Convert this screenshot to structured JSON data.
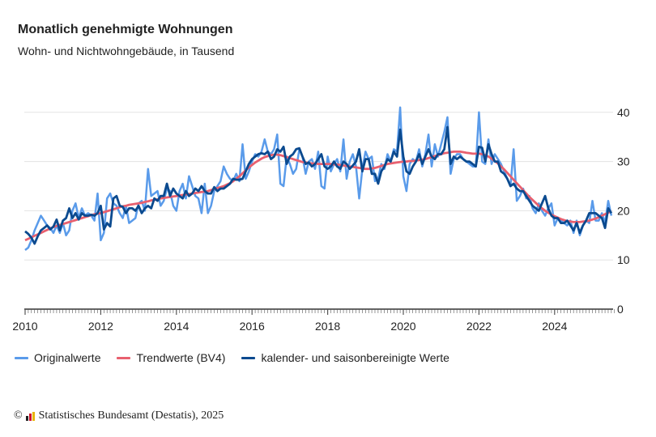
{
  "title": "Monatlich genehmigte Wohnungen",
  "subtitle": "Wohn- und Nichtwohngebäude, in Tausend",
  "footer": {
    "copyright": "©",
    "text": "Statistisches Bundesamt (Destatis), 2025",
    "logo_text": "Destatis"
  },
  "chart_data": {
    "type": "line",
    "x_start": "2010-01",
    "frequency": "monthly",
    "x_ticks": [
      "2010",
      "2012",
      "2014",
      "2016",
      "2018",
      "2020",
      "2022",
      "2024"
    ],
    "y_ticks": [
      "0",
      "10",
      "20",
      "30",
      "40"
    ],
    "ylim": [
      0,
      40
    ],
    "y_axis_side": "right",
    "grid": true,
    "legend_position": "bottom",
    "series": [
      {
        "name": "Originalwerte",
        "color": "#5a9bea",
        "values": [
          12.0,
          12.5,
          14.0,
          16.0,
          17.5,
          19.0,
          18.0,
          17.0,
          16.5,
          15.5,
          17.0,
          15.5,
          17.5,
          15.0,
          16.0,
          20.0,
          21.5,
          18.5,
          20.5,
          19.0,
          19.5,
          19.0,
          18.0,
          23.5,
          14.0,
          15.5,
          22.5,
          23.5,
          21.5,
          21.0,
          19.5,
          18.5,
          21.0,
          17.5,
          18.0,
          18.5,
          21.5,
          22.0,
          20.0,
          28.5,
          23.0,
          23.5,
          24.0,
          21.0,
          22.0,
          24.5,
          24.0,
          21.0,
          20.0,
          24.0,
          25.5,
          22.5,
          27.0,
          25.0,
          23.0,
          22.5,
          19.5,
          25.5,
          19.5,
          21.0,
          24.0,
          25.0,
          26.0,
          29.0,
          27.5,
          26.5,
          26.0,
          27.5,
          26.0,
          33.5,
          26.5,
          28.0,
          30.0,
          31.5,
          31.0,
          32.0,
          34.5,
          32.0,
          31.5,
          32.5,
          35.5,
          25.5,
          25.0,
          31.0,
          29.5,
          27.5,
          28.5,
          32.5,
          31.0,
          27.5,
          30.0,
          30.5,
          28.5,
          32.0,
          25.0,
          24.5,
          31.0,
          28.0,
          29.5,
          30.5,
          28.0,
          34.5,
          26.5,
          30.0,
          31.5,
          29.0,
          22.5,
          28.5,
          32.0,
          30.5,
          31.0,
          26.0,
          26.5,
          29.5,
          28.5,
          31.5,
          30.0,
          32.5,
          32.0,
          41.0,
          27.0,
          24.0,
          29.5,
          30.5,
          30.0,
          32.5,
          29.0,
          31.5,
          35.5,
          29.0,
          33.5,
          31.0,
          33.5,
          36.0,
          39.0,
          27.5,
          30.5,
          31.5,
          31.5,
          30.5,
          30.0,
          29.5,
          29.0,
          29.0,
          40.0,
          30.0,
          29.5,
          34.5,
          29.5,
          31.5,
          30.5,
          29.5,
          28.0,
          26.5,
          25.0,
          32.5,
          22.0,
          23.0,
          24.5,
          22.5,
          23.0,
          20.5,
          19.5,
          21.5,
          20.0,
          19.0,
          20.5,
          21.5,
          17.0,
          18.5,
          18.0,
          17.5,
          17.0,
          18.0,
          15.5,
          18.0,
          15.0,
          17.0,
          18.0,
          17.5,
          22.0,
          18.0,
          18.0,
          19.5,
          17.5,
          22.0,
          19.0
        ]
      },
      {
        "name": "Trendwerte (BV4)",
        "color": "#e8606f",
        "values": [
          14.0,
          14.3,
          14.6,
          14.9,
          15.2,
          15.5,
          15.8,
          16.1,
          16.4,
          16.7,
          16.9,
          17.1,
          17.3,
          17.5,
          17.7,
          17.9,
          18.1,
          18.3,
          18.5,
          18.7,
          18.9,
          19.1,
          19.3,
          19.4,
          19.5,
          19.7,
          19.9,
          20.1,
          20.3,
          20.5,
          20.7,
          20.9,
          21.0,
          21.2,
          21.3,
          21.4,
          21.5,
          21.6,
          21.8,
          21.9,
          22.1,
          22.2,
          22.3,
          22.5,
          22.6,
          22.7,
          22.8,
          22.9,
          23.0,
          23.1,
          23.2,
          23.3,
          23.4,
          23.5,
          23.6,
          23.7,
          23.8,
          23.9,
          24.0,
          24.2,
          24.4,
          24.6,
          24.8,
          25.0,
          25.3,
          25.6,
          26.0,
          26.5,
          27.0,
          27.6,
          28.2,
          28.8,
          29.3,
          29.8,
          30.2,
          30.6,
          30.9,
          31.1,
          31.3,
          31.4,
          31.4,
          31.3,
          31.1,
          30.9,
          30.7,
          30.5,
          30.3,
          30.1,
          29.9,
          29.8,
          29.7,
          29.6,
          29.6,
          29.5,
          29.5,
          29.5,
          29.5,
          29.5,
          29.4,
          29.4,
          29.3,
          29.2,
          29.1,
          29.0,
          28.9,
          28.8,
          28.7,
          28.6,
          28.5,
          28.5,
          28.6,
          28.7,
          28.9,
          29.1,
          29.3,
          29.5,
          29.6,
          29.7,
          29.8,
          29.9,
          30.0,
          30.0,
          30.1,
          30.1,
          30.2,
          30.3,
          30.4,
          30.5,
          30.7,
          30.9,
          31.1,
          31.3,
          31.5,
          31.7,
          31.8,
          31.9,
          32.0,
          32.0,
          32.0,
          31.9,
          31.8,
          31.7,
          31.6,
          31.6,
          31.6,
          31.5,
          31.3,
          31.0,
          30.6,
          30.1,
          29.6,
          29.0,
          28.4,
          27.7,
          27.0,
          26.3,
          25.6,
          24.9,
          24.2,
          23.5,
          22.8,
          22.2,
          21.6,
          21.0,
          20.5,
          20.0,
          19.6,
          19.2,
          18.9,
          18.6,
          18.3,
          18.1,
          17.9,
          17.8,
          17.7,
          17.7,
          17.7,
          17.8,
          17.9,
          18.0,
          18.2,
          18.4,
          18.7,
          19.0,
          19.3,
          19.6,
          19.9
        ]
      },
      {
        "name": "kalender- und saisonbereinigte Werte",
        "color": "#0b4a8f",
        "values": [
          15.8,
          15.3,
          14.5,
          13.3,
          14.8,
          16.0,
          16.5,
          17.0,
          16.2,
          16.8,
          18.2,
          16.0,
          18.0,
          18.5,
          20.5,
          18.5,
          19.5,
          18.2,
          19.5,
          19.0,
          19.0,
          19.2,
          19.0,
          19.5,
          21.0,
          16.2,
          17.5,
          16.8,
          22.5,
          23.0,
          21.0,
          20.8,
          19.5,
          20.5,
          20.5,
          20.0,
          21.0,
          19.5,
          20.5,
          21.0,
          20.5,
          22.5,
          22.0,
          23.0,
          23.0,
          25.5,
          23.0,
          24.5,
          23.5,
          23.0,
          22.5,
          24.0,
          23.0,
          23.5,
          24.5,
          24.0,
          25.0,
          24.0,
          23.5,
          23.5,
          24.8,
          24.0,
          24.5,
          24.5,
          25.0,
          25.5,
          26.5,
          26.3,
          26.3,
          26.5,
          28.0,
          29.5,
          30.5,
          31.0,
          31.5,
          31.7,
          31.5,
          32.0,
          30.5,
          31.0,
          32.5,
          32.0,
          33.0,
          29.5,
          31.0,
          31.5,
          32.5,
          32.7,
          31.0,
          29.5,
          29.8,
          29.0,
          29.5,
          30.5,
          31.5,
          29.0,
          28.5,
          29.0,
          30.0,
          29.0,
          28.5,
          30.0,
          29.5,
          28.5,
          29.2,
          30.0,
          32.5,
          28.0,
          30.5,
          30.5,
          27.5,
          27.5,
          25.5,
          28.0,
          29.0,
          30.5,
          30.0,
          32.0,
          31.0,
          36.5,
          31.0,
          28.0,
          27.5,
          29.0,
          30.0,
          31.5,
          29.5,
          31.0,
          32.5,
          31.0,
          30.5,
          31.5,
          31.5,
          32.5,
          37.0,
          29.5,
          31.0,
          30.5,
          31.0,
          30.5,
          30.0,
          30.0,
          29.5,
          29.0,
          33.0,
          32.8,
          30.0,
          33.5,
          31.5,
          30.0,
          30.0,
          28.0,
          27.5,
          26.5,
          25.0,
          25.5,
          24.5,
          24.0,
          24.0,
          23.0,
          22.0,
          21.0,
          20.5,
          20.0,
          21.5,
          23.0,
          20.5,
          19.0,
          18.5,
          18.5,
          17.5,
          17.5,
          18.0,
          17.0,
          16.0,
          17.5,
          15.5,
          17.0,
          18.0,
          19.5,
          19.5,
          19.5,
          19.0,
          18.5,
          16.5,
          20.5,
          19.5
        ]
      }
    ]
  }
}
